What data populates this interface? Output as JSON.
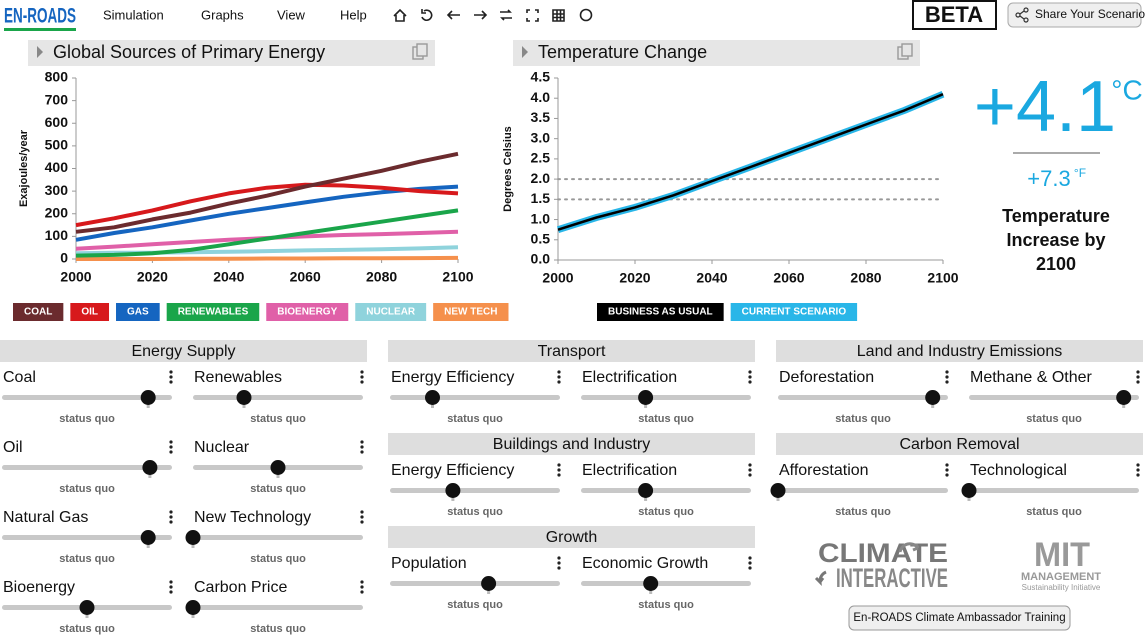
{
  "header": {
    "logo": "EN-ROADS",
    "menu": [
      "Simulation",
      "Graphs",
      "View",
      "Help"
    ],
    "badge": "BETA",
    "share": "Share Your Scenario"
  },
  "chart_data": [
    {
      "type": "line",
      "title": "Global Sources of Primary Energy",
      "y_label": "Exajoules/year",
      "x": [
        2000,
        2010,
        2020,
        2030,
        2040,
        2050,
        2060,
        2070,
        2080,
        2090,
        2100
      ],
      "xlim": [
        2000,
        2100
      ],
      "xticks": [
        2000,
        2020,
        2040,
        2060,
        2080,
        2100
      ],
      "ylim": [
        0,
        800
      ],
      "yticks": [
        0,
        100,
        200,
        300,
        400,
        500,
        600,
        700,
        800
      ],
      "series": [
        {
          "name": "COAL",
          "color": "#6b2b2e",
          "values": [
            120,
            140,
            175,
            205,
            245,
            280,
            320,
            355,
            390,
            430,
            465
          ]
        },
        {
          "name": "OIL",
          "color": "#d7191c",
          "values": [
            150,
            180,
            215,
            255,
            290,
            315,
            328,
            325,
            315,
            300,
            290
          ]
        },
        {
          "name": "GAS",
          "color": "#1565c0",
          "values": [
            85,
            115,
            140,
            170,
            200,
            225,
            250,
            275,
            295,
            310,
            320
          ]
        },
        {
          "name": "RENEWABLES",
          "color": "#1aa54a",
          "values": [
            15,
            18,
            25,
            40,
            65,
            90,
            115,
            140,
            165,
            190,
            215
          ]
        },
        {
          "name": "BIOENERGY",
          "color": "#e060a8",
          "values": [
            45,
            55,
            65,
            75,
            85,
            93,
            100,
            106,
            110,
            115,
            120
          ]
        },
        {
          "name": "NUCLEAR",
          "color": "#8fd3dc",
          "values": [
            25,
            28,
            28,
            30,
            32,
            35,
            38,
            40,
            43,
            47,
            52
          ]
        },
        {
          "name": "NEW TECH",
          "color": "#f5904c",
          "values": [
            0,
            0,
            0,
            1,
            1,
            2,
            2,
            3,
            3,
            4,
            5
          ]
        }
      ]
    },
    {
      "type": "line",
      "title": "Temperature Change",
      "y_label": "Degrees Celsius",
      "x": [
        2000,
        2010,
        2020,
        2030,
        2040,
        2050,
        2060,
        2070,
        2080,
        2090,
        2100
      ],
      "xlim": [
        2000,
        2100
      ],
      "xticks": [
        2000,
        2020,
        2040,
        2060,
        2080,
        2100
      ],
      "ylim": [
        0,
        4.5
      ],
      "yticks": [
        {
          "value": 0,
          "label": "0.0"
        },
        0.5,
        {
          "value": 1,
          "label": "1.0"
        },
        1.5,
        {
          "value": 2,
          "label": "2.0"
        },
        2.5,
        {
          "value": 3,
          "label": "3.0"
        },
        3.5,
        {
          "value": 4,
          "label": "4.0"
        },
        4.5
      ],
      "reference_lines": [
        1.5,
        2
      ],
      "series": [
        {
          "name": "BUSINESS AS USUAL",
          "color": "#000000",
          "values": [
            0.75,
            1.05,
            1.3,
            1.6,
            1.95,
            2.3,
            2.65,
            3.0,
            3.35,
            3.7,
            4.1
          ]
        },
        {
          "name": "CURRENT SCENARIO",
          "color": "#29b6e8",
          "values": [
            0.75,
            1.05,
            1.3,
            1.6,
            1.95,
            2.3,
            2.65,
            3.0,
            3.35,
            3.7,
            4.1
          ]
        }
      ]
    }
  ],
  "readout": {
    "celsius": "+4.1",
    "celsius_unit": "°C",
    "fahrenheit": "+7.3",
    "fahrenheit_unit": "°F",
    "caption": "Temperature Increase by 2100"
  },
  "panels": [
    {
      "groups": [
        {
          "title": "Energy Supply",
          "sliders": [
            {
              "label": "Coal",
              "status": "status quo",
              "value": 86
            },
            {
              "label": "Renewables",
              "status": "status quo",
              "value": 30
            },
            {
              "label": "Oil",
              "status": "status quo",
              "value": 87
            },
            {
              "label": "Nuclear",
              "status": "status quo",
              "value": 50
            },
            {
              "label": "Natural Gas",
              "status": "status quo",
              "value": 86
            },
            {
              "label": "New Technology",
              "status": "status quo",
              "value": 0
            },
            {
              "label": "Bioenergy",
              "status": "status quo",
              "value": 50
            },
            {
              "label": "Carbon Price",
              "status": "status quo",
              "value": 0
            }
          ]
        }
      ]
    },
    {
      "groups": [
        {
          "title": "Transport",
          "sliders": [
            {
              "label": "Energy Efficiency",
              "status": "status quo",
              "value": 25
            },
            {
              "label": "Electrification",
              "status": "status quo",
              "value": 38
            }
          ]
        },
        {
          "title": "Buildings and Industry",
          "sliders": [
            {
              "label": "Energy Efficiency",
              "status": "status quo",
              "value": 37
            },
            {
              "label": "Electrification",
              "status": "status quo",
              "value": 38
            }
          ]
        },
        {
          "title": "Growth",
          "sliders": [
            {
              "label": "Population",
              "status": "status quo",
              "value": 58
            },
            {
              "label": "Economic Growth",
              "status": "status quo",
              "value": 41
            }
          ]
        }
      ]
    },
    {
      "groups": [
        {
          "title": "Land and Industry Emissions",
          "sliders": [
            {
              "label": "Deforestation",
              "status": "status quo",
              "value": 91
            },
            {
              "label": "Methane & Other",
              "status": "status quo",
              "value": 91
            }
          ]
        },
        {
          "title": "Carbon Removal",
          "sliders": [
            {
              "label": "Afforestation",
              "status": "status quo",
              "value": 0
            },
            {
              "label": "Technological",
              "status": "status quo",
              "value": 0
            }
          ]
        }
      ]
    }
  ],
  "footer": {
    "logos": [
      "CLIMATE",
      "INTERACTIVE",
      "MIT",
      "MANAGEMENT",
      "Sustainability Initiative"
    ],
    "button": "En-ROADS Climate Ambassador Training"
  }
}
